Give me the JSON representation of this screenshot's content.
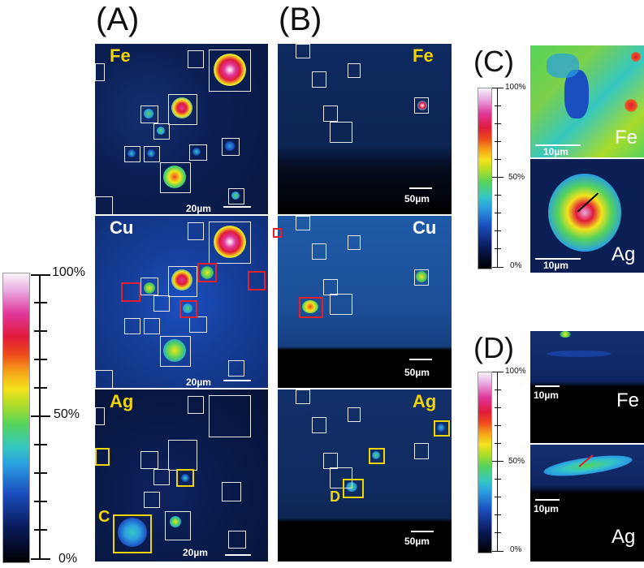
{
  "labels": {
    "A": "(A)",
    "B": "(B)",
    "C": "(C)",
    "D": "(D)"
  },
  "elements": {
    "fe": "Fe",
    "cu": "Cu",
    "ag": "Ag"
  },
  "scales": {
    "s20": "20µm",
    "s50": "50µm",
    "s10": "10µm"
  },
  "box_letters": {
    "c": "C",
    "d": "D"
  },
  "colorbar": {
    "max": "100%",
    "mid": "50%",
    "min": "0%"
  },
  "colors": {
    "element_label_yellow": "#f2d500",
    "element_label_white": "#ffffff",
    "red_box": "#e0202a",
    "yellow_box": "#f2d500"
  }
}
